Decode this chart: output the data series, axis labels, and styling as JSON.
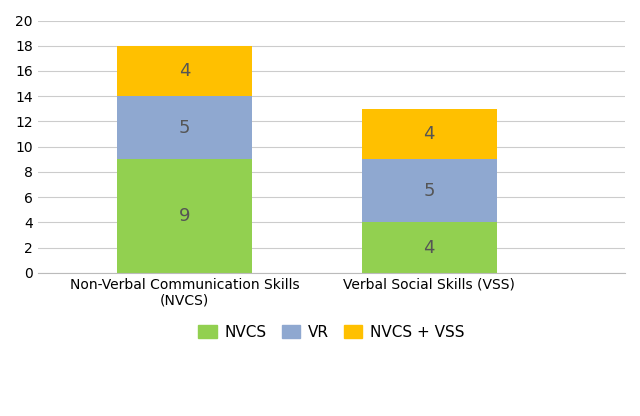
{
  "categories": [
    "Non-Verbal Communication Skills\n(NVCS)",
    "Verbal Social Skills (VSS)"
  ],
  "nvcs_values": [
    9,
    4
  ],
  "vr_values": [
    5,
    5
  ],
  "nvcs_vss_values": [
    4,
    4
  ],
  "nvcs_color": "#92D050",
  "vr_color": "#8FA8D0",
  "nvcs_vss_color": "#FFC000",
  "ylim": [
    0,
    20
  ],
  "yticks": [
    0,
    2,
    4,
    6,
    8,
    10,
    12,
    14,
    16,
    18,
    20
  ],
  "legend_labels": [
    "NVCS",
    "VR",
    "NVCS + VSS"
  ],
  "bar_width": 0.55,
  "x_positions": [
    1,
    2
  ],
  "xlim": [
    0.4,
    2.8
  ],
  "tick_fontsize": 10,
  "legend_fontsize": 11,
  "value_fontsize": 13,
  "value_color": "#555555",
  "background_color": "#ffffff",
  "grid_color": "#cccccc"
}
